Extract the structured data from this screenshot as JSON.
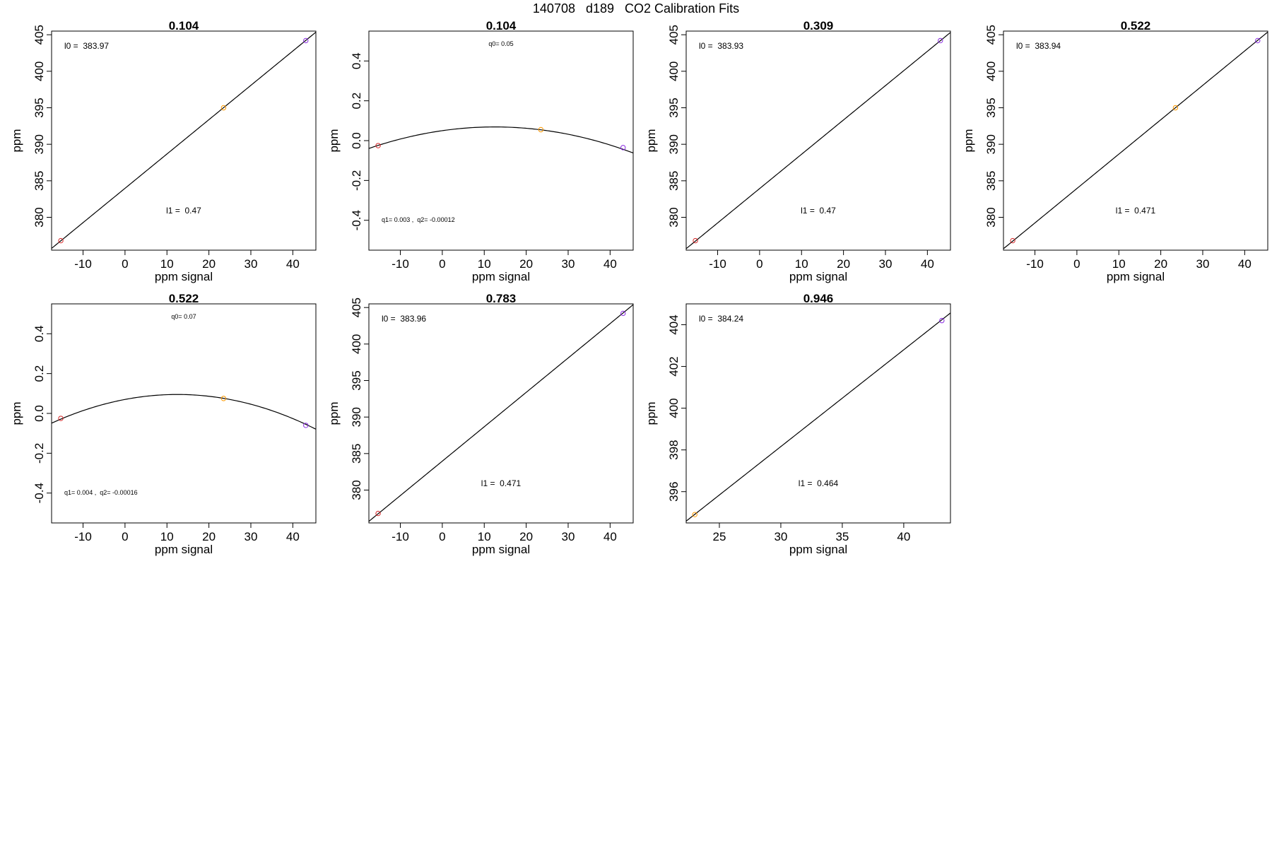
{
  "figure": {
    "title": "140708   d189   CO2 Calibration Fits"
  },
  "colors": {
    "axis": "#000000",
    "fit_line": "#000000",
    "point_low": "#d62728",
    "point_mid": "#ff9900",
    "point_high": "#8a2be2"
  },
  "chart_data": [
    {
      "type": "line",
      "title": "0.104",
      "xlabel": "ppm signal",
      "ylabel": "ppm",
      "xlim": [
        -17.5,
        45.5
      ],
      "ylim": [
        375.5,
        405.5
      ],
      "xticks": [
        -10,
        0,
        10,
        20,
        30,
        40
      ],
      "yticks": [
        380,
        385,
        390,
        395,
        400,
        405
      ],
      "fit": {
        "kind": "linear",
        "intercept": 383.97,
        "slope": 0.47
      },
      "points": [
        {
          "x": -15.3,
          "y": 376.8,
          "color": "point_low"
        },
        {
          "x": 23.5,
          "y": 395.0,
          "color": "point_mid"
        },
        {
          "x": 43.1,
          "y": 404.2,
          "color": "point_high"
        }
      ],
      "annotations": [
        {
          "text": "l0 =  383.97",
          "pos": "top-left"
        },
        {
          "text": "l1 =  0.47",
          "pos": "bottom-center"
        }
      ]
    },
    {
      "type": "line",
      "title": "0.104",
      "xlabel": "ppm signal",
      "ylabel": "ppm",
      "xlim": [
        -17.5,
        45.5
      ],
      "ylim": [
        -0.55,
        0.55
      ],
      "xticks": [
        -10,
        0,
        10,
        20,
        30,
        40
      ],
      "yticks": [
        -0.4,
        -0.2,
        0.0,
        0.2,
        0.4
      ],
      "fit": {
        "kind": "quadratic",
        "q0": 0.05,
        "q1": 0.003,
        "q2": -0.00012
      },
      "points": [
        {
          "x": -15.3,
          "y": -0.025,
          "color": "point_low"
        },
        {
          "x": 23.5,
          "y": 0.055,
          "color": "point_mid"
        },
        {
          "x": 43.1,
          "y": -0.035,
          "color": "point_high"
        }
      ],
      "annotations": [
        {
          "text": "q0= 0.05",
          "pos": "top-center"
        },
        {
          "text": "q1= 0.003 ,  q2= -0.00012",
          "pos": "bottom-left"
        }
      ]
    },
    {
      "type": "line",
      "title": "0.309",
      "xlabel": "ppm signal",
      "ylabel": "ppm",
      "xlim": [
        -17.5,
        45.5
      ],
      "ylim": [
        375.5,
        405.5
      ],
      "xticks": [
        -10,
        0,
        10,
        20,
        30,
        40
      ],
      "yticks": [
        380,
        385,
        390,
        395,
        400,
        405
      ],
      "fit": {
        "kind": "linear",
        "intercept": 383.93,
        "slope": 0.47
      },
      "points": [
        {
          "x": -15.3,
          "y": 376.8,
          "color": "point_low"
        },
        {
          "x": 43.1,
          "y": 404.2,
          "color": "point_high"
        }
      ],
      "annotations": [
        {
          "text": "l0 =  383.93",
          "pos": "top-left"
        },
        {
          "text": "l1 =  0.47",
          "pos": "bottom-center"
        }
      ]
    },
    {
      "type": "line",
      "title": "0.522",
      "xlabel": "ppm signal",
      "ylabel": "ppm",
      "xlim": [
        -17.5,
        45.5
      ],
      "ylim": [
        375.5,
        405.5
      ],
      "xticks": [
        -10,
        0,
        10,
        20,
        30,
        40
      ],
      "yticks": [
        380,
        385,
        390,
        395,
        400,
        405
      ],
      "fit": {
        "kind": "linear",
        "intercept": 383.94,
        "slope": 0.471
      },
      "points": [
        {
          "x": -15.3,
          "y": 376.8,
          "color": "point_low"
        },
        {
          "x": 23.5,
          "y": 395.0,
          "color": "point_mid"
        },
        {
          "x": 43.1,
          "y": 404.2,
          "color": "point_high"
        }
      ],
      "annotations": [
        {
          "text": "l0 =  383.94",
          "pos": "top-left"
        },
        {
          "text": "l1 =  0.471",
          "pos": "bottom-center"
        }
      ]
    },
    {
      "type": "line",
      "title": "0.522",
      "xlabel": "ppm signal",
      "ylabel": "ppm",
      "xlim": [
        -17.5,
        45.5
      ],
      "ylim": [
        -0.55,
        0.55
      ],
      "xticks": [
        -10,
        0,
        10,
        20,
        30,
        40
      ],
      "yticks": [
        -0.4,
        -0.2,
        0.0,
        0.2,
        0.4
      ],
      "fit": {
        "kind": "quadratic",
        "q0": 0.07,
        "q1": 0.004,
        "q2": -0.00016
      },
      "points": [
        {
          "x": -15.3,
          "y": -0.025,
          "color": "point_low"
        },
        {
          "x": 23.5,
          "y": 0.075,
          "color": "point_mid"
        },
        {
          "x": 43.1,
          "y": -0.06,
          "color": "point_high"
        }
      ],
      "annotations": [
        {
          "text": "q0= 0.07",
          "pos": "top-center"
        },
        {
          "text": "q1= 0.004 ,  q2= -0.00016",
          "pos": "bottom-left"
        }
      ]
    },
    {
      "type": "line",
      "title": "0.783",
      "xlabel": "ppm signal",
      "ylabel": "ppm",
      "xlim": [
        -17.5,
        45.5
      ],
      "ylim": [
        375.5,
        405.5
      ],
      "xticks": [
        -10,
        0,
        10,
        20,
        30,
        40
      ],
      "yticks": [
        380,
        385,
        390,
        395,
        400,
        405
      ],
      "fit": {
        "kind": "linear",
        "intercept": 383.96,
        "slope": 0.471
      },
      "points": [
        {
          "x": -15.3,
          "y": 376.8,
          "color": "point_low"
        },
        {
          "x": 43.1,
          "y": 404.2,
          "color": "point_high"
        }
      ],
      "annotations": [
        {
          "text": "l0 =  383.96",
          "pos": "top-left"
        },
        {
          "text": "l1 =  0.471",
          "pos": "bottom-center"
        }
      ]
    },
    {
      "type": "line",
      "title": "0.946",
      "xlabel": "ppm signal",
      "ylabel": "ppm",
      "xlim": [
        22.3,
        43.8
      ],
      "ylim": [
        394.5,
        405.0
      ],
      "xticks": [
        25,
        30,
        35,
        40
      ],
      "yticks": [
        396,
        398,
        400,
        402,
        404
      ],
      "fit": {
        "kind": "linear",
        "intercept": 384.24,
        "slope": 0.464
      },
      "points": [
        {
          "x": 23.0,
          "y": 394.9,
          "color": "point_mid"
        },
        {
          "x": 43.1,
          "y": 404.2,
          "color": "point_high"
        }
      ],
      "annotations": [
        {
          "text": "l0 =  384.24",
          "pos": "top-left"
        },
        {
          "text": "l1 =  0.464",
          "pos": "bottom-center"
        }
      ]
    }
  ]
}
